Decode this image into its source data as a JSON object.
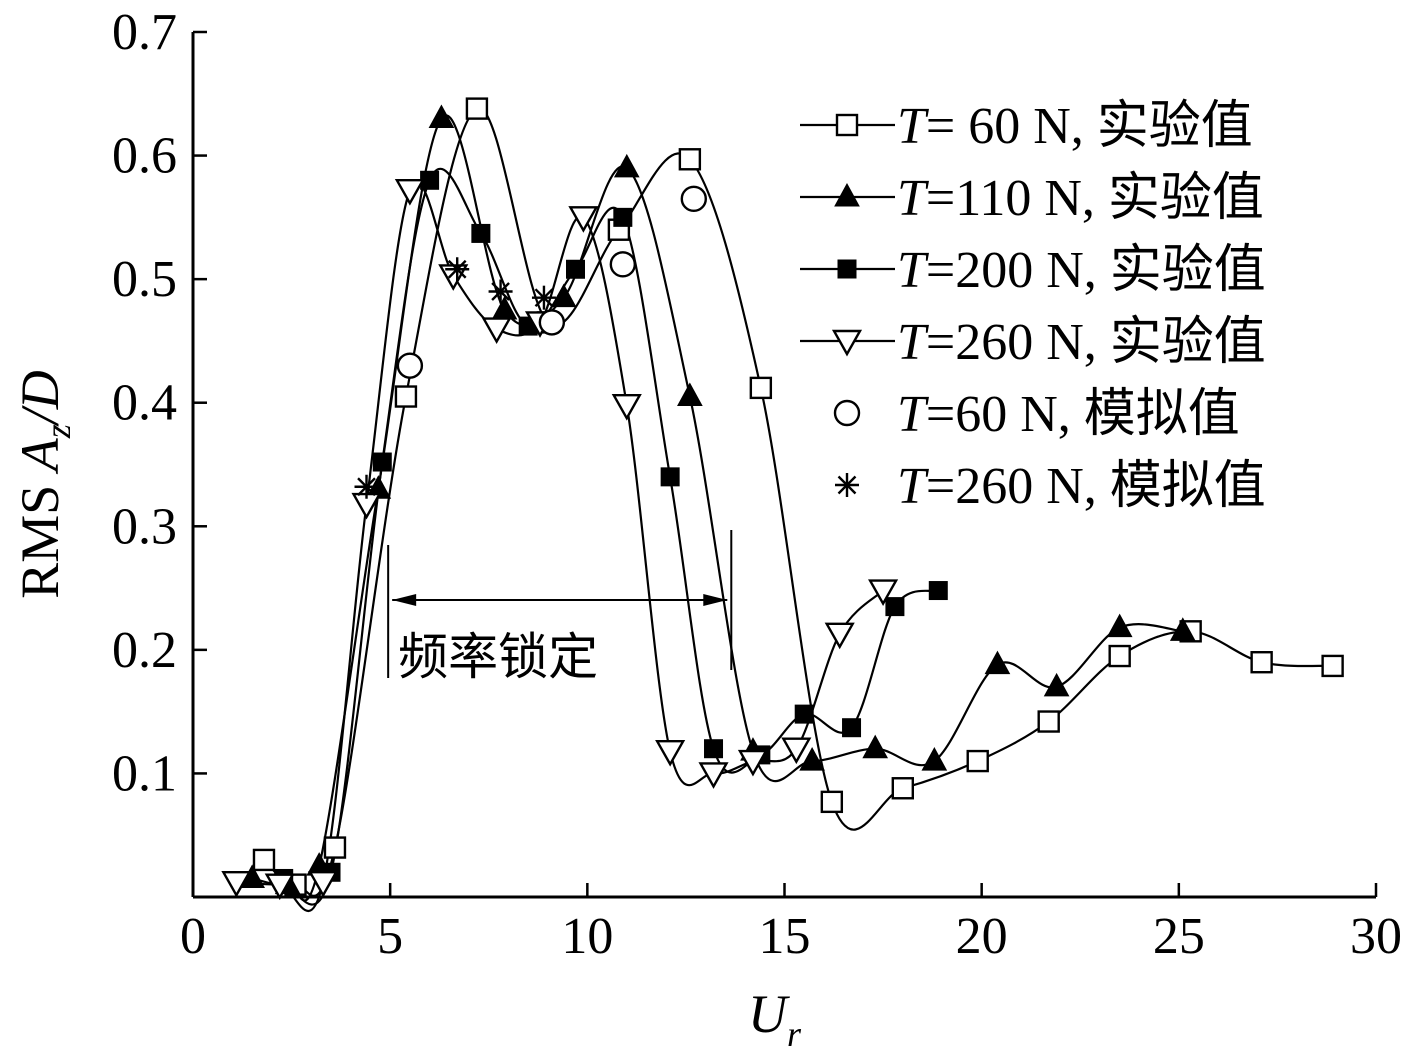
{
  "chart_data": {
    "type": "scatter",
    "title": "",
    "xlabel": "U",
    "xlabel_sub": "r",
    "ylabel_prefix": "RMS ",
    "ylabel_var": "A",
    "ylabel_sub": "z",
    "ylabel_suffix": "/D",
    "xlim": [
      0,
      30
    ],
    "ylim": [
      0,
      0.7
    ],
    "xticks": [
      0,
      5,
      10,
      15,
      20,
      25,
      30
    ],
    "yticks": [
      0.1,
      0.2,
      0.3,
      0.4,
      0.5,
      0.6,
      0.7
    ],
    "xtick_labels": [
      "0",
      "5",
      "10",
      "15",
      "20",
      "25",
      "30"
    ],
    "ytick_labels": [
      "0.1",
      "0.2",
      "0.3",
      "0.4",
      "0.5",
      "0.6",
      "0.7"
    ],
    "grid": false,
    "legend_position": "top-right",
    "series": [
      {
        "name": "= 60 N, 实验值",
        "marker": "open-square",
        "fitted_curve": true,
        "points": [
          [
            1.8,
            0.03
          ],
          [
            2.6,
            0.01
          ],
          [
            3.6,
            0.04
          ],
          [
            5.4,
            0.405
          ],
          [
            7.2,
            0.638
          ],
          [
            9.0,
            0.465
          ],
          [
            10.8,
            0.54
          ],
          [
            12.6,
            0.597
          ],
          [
            14.4,
            0.412
          ],
          [
            16.2,
            0.077
          ],
          [
            18.0,
            0.088
          ],
          [
            19.9,
            0.11
          ],
          [
            21.7,
            0.142
          ],
          [
            23.5,
            0.195
          ],
          [
            25.3,
            0.215
          ],
          [
            27.1,
            0.19
          ],
          [
            28.9,
            0.187
          ]
        ]
      },
      {
        "name": "=110 N, 实验值",
        "marker": "filled-triangle",
        "fitted_curve": true,
        "points": [
          [
            1.5,
            0.015
          ],
          [
            2.4,
            0.01
          ],
          [
            3.2,
            0.025
          ],
          [
            4.7,
            0.33
          ],
          [
            6.3,
            0.63
          ],
          [
            7.9,
            0.475
          ],
          [
            9.4,
            0.485
          ],
          [
            11.0,
            0.59
          ],
          [
            12.6,
            0.405
          ],
          [
            14.2,
            0.118
          ],
          [
            15.7,
            0.11
          ],
          [
            17.3,
            0.12
          ],
          [
            18.8,
            0.11
          ],
          [
            20.4,
            0.188
          ],
          [
            21.9,
            0.17
          ],
          [
            23.5,
            0.218
          ],
          [
            25.1,
            0.215
          ]
        ]
      },
      {
        "name": "=200 N, 实验值",
        "marker": "filled-square",
        "fitted_curve": true,
        "points": [
          [
            2.3,
            0.015
          ],
          [
            3.5,
            0.02
          ],
          [
            4.8,
            0.352
          ],
          [
            6.0,
            0.58
          ],
          [
            7.3,
            0.537
          ],
          [
            8.5,
            0.462
          ],
          [
            9.7,
            0.508
          ],
          [
            10.9,
            0.55
          ],
          [
            12.1,
            0.34
          ],
          [
            13.2,
            0.12
          ],
          [
            14.4,
            0.115
          ],
          [
            15.5,
            0.148
          ],
          [
            16.7,
            0.137
          ],
          [
            17.8,
            0.235
          ],
          [
            18.9,
            0.248
          ]
        ]
      },
      {
        "name": "=260 N, 实验值",
        "marker": "open-triangle-down",
        "fitted_curve": true,
        "points": [
          [
            1.1,
            0.012
          ],
          [
            2.2,
            0.01
          ],
          [
            3.3,
            0.012
          ],
          [
            4.4,
            0.318
          ],
          [
            5.5,
            0.572
          ],
          [
            6.6,
            0.503
          ],
          [
            7.7,
            0.46
          ],
          [
            8.8,
            0.465
          ],
          [
            9.9,
            0.55
          ],
          [
            11.0,
            0.398
          ],
          [
            12.1,
            0.118
          ],
          [
            13.2,
            0.1
          ],
          [
            14.2,
            0.11
          ],
          [
            15.3,
            0.12
          ],
          [
            16.4,
            0.213
          ],
          [
            17.5,
            0.248
          ]
        ]
      },
      {
        "name": "=60 N, 模拟值",
        "marker": "open-circle",
        "fitted_curve": false,
        "points": [
          [
            5.5,
            0.43
          ],
          [
            9.1,
            0.465
          ],
          [
            10.9,
            0.512
          ],
          [
            12.7,
            0.565
          ]
        ]
      },
      {
        "name": "=260 N, 模拟值",
        "marker": "asterisk",
        "fitted_curve": false,
        "points": [
          [
            4.4,
            0.332
          ],
          [
            6.7,
            0.508
          ],
          [
            7.8,
            0.49
          ],
          [
            8.9,
            0.485
          ]
        ]
      }
    ],
    "legend_var": "T",
    "annotation": {
      "text": "频率锁定",
      "x_start": 5.0,
      "x_end": 13.6
    }
  }
}
